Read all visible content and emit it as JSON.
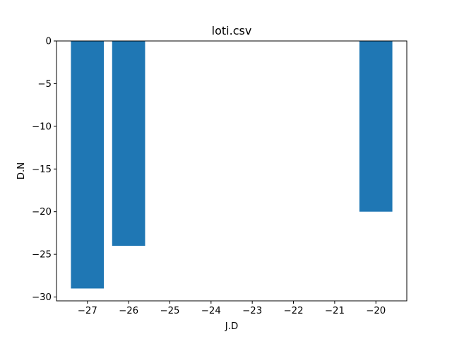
{
  "chart_data": {
    "type": "bar",
    "title": "loti.csv",
    "xlabel": "J.D",
    "ylabel": "D.N",
    "x": [
      -27,
      -26,
      -20
    ],
    "values": [
      -29,
      -24,
      -20
    ],
    "xlim": [
      -27.75,
      -19.25
    ],
    "ylim": [
      -30.45,
      0
    ],
    "xticks": [
      -27,
      -26,
      -25,
      -24,
      -23,
      -22,
      -21,
      -20
    ],
    "xtick_labels": [
      "−27",
      "−26",
      "−25",
      "−24",
      "−23",
      "−22",
      "−21",
      "−20"
    ],
    "yticks": [
      0,
      -5,
      -10,
      -15,
      -20,
      -25,
      -30
    ],
    "ytick_labels": [
      "0",
      "−5",
      "−10",
      "−15",
      "−20",
      "−25",
      "−30"
    ],
    "bar_width": 0.8,
    "grid": false,
    "legend": "none",
    "bar_color": "#1f77b4"
  }
}
